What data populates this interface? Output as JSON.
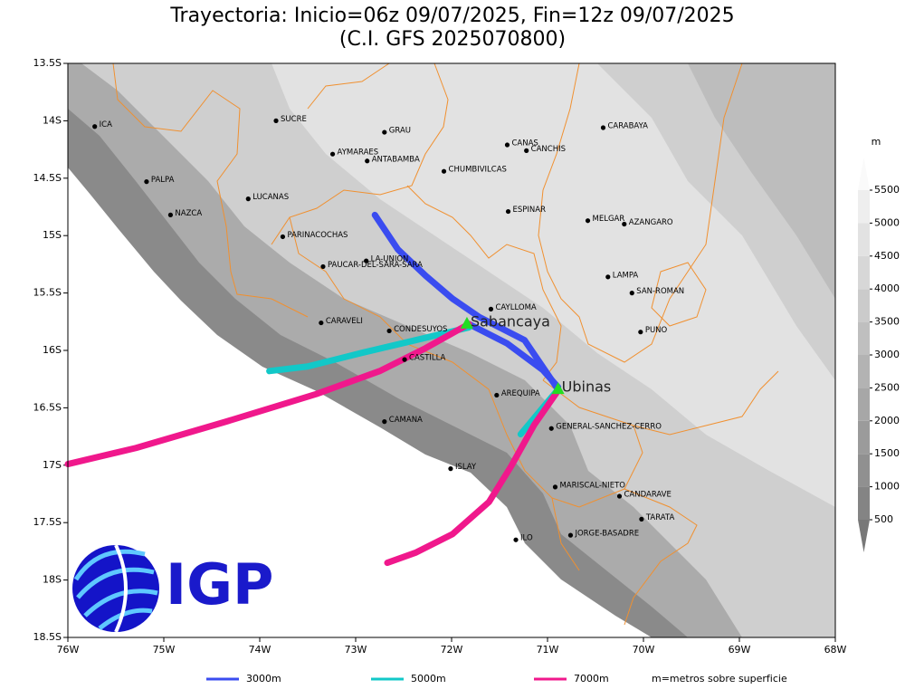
{
  "title": "Trayectoria: Inicio=06z 09/07/2025, Fin=12z 09/07/2025",
  "subtitle": "(C.I. GFS 2025070800)",
  "logo": "IGP",
  "map": {
    "xlim": [
      -76,
      -68
    ],
    "ylim": [
      -18.5,
      -13.5
    ],
    "xticks": [
      {
        "value": -76,
        "label": "76W"
      },
      {
        "value": -75,
        "label": "75W"
      },
      {
        "value": -74,
        "label": "74W"
      },
      {
        "value": -73,
        "label": "73W"
      },
      {
        "value": -72,
        "label": "72W"
      },
      {
        "value": -71,
        "label": "71W"
      },
      {
        "value": -70,
        "label": "70W"
      },
      {
        "value": -69,
        "label": "69W"
      },
      {
        "value": -68,
        "label": "68W"
      }
    ],
    "yticks": [
      {
        "value": -13.5,
        "label": "13.5S"
      },
      {
        "value": -14,
        "label": "14S"
      },
      {
        "value": -14.5,
        "label": "14.5S"
      },
      {
        "value": -15,
        "label": "15S"
      },
      {
        "value": -15.5,
        "label": "15.5S"
      },
      {
        "value": -16,
        "label": "16S"
      },
      {
        "value": -16.5,
        "label": "16.5S"
      },
      {
        "value": -17,
        "label": "17S"
      },
      {
        "value": -17.5,
        "label": "17.5S"
      },
      {
        "value": -18,
        "label": "18S"
      },
      {
        "value": -18.5,
        "label": "18.5S"
      }
    ],
    "places": [
      {
        "name": "ICA",
        "lon": -75.72,
        "lat": -14.05
      },
      {
        "name": "SUCRE",
        "lon": -73.83,
        "lat": -14.0
      },
      {
        "name": "GRAU",
        "lon": -72.7,
        "lat": -14.1
      },
      {
        "name": "AYMARAES",
        "lon": -73.24,
        "lat": -14.29
      },
      {
        "name": "ANTABAMBA",
        "lon": -72.88,
        "lat": -14.35
      },
      {
        "name": "CANAS",
        "lon": -71.42,
        "lat": -14.21
      },
      {
        "name": "CANCHIS",
        "lon": -71.22,
        "lat": -14.26
      },
      {
        "name": "CARABAYA",
        "lon": -70.42,
        "lat": -14.06
      },
      {
        "name": "CHUMBIVILCAS",
        "lon": -72.08,
        "lat": -14.44
      },
      {
        "name": "PALPA",
        "lon": -75.18,
        "lat": -14.53
      },
      {
        "name": "LUCANAS",
        "lon": -74.12,
        "lat": -14.68
      },
      {
        "name": "NAZCA",
        "lon": -74.93,
        "lat": -14.82
      },
      {
        "name": "ESPINAR",
        "lon": -71.41,
        "lat": -14.79
      },
      {
        "name": "MELGAR",
        "lon": -70.58,
        "lat": -14.87
      },
      {
        "name": "AZANGARO",
        "lon": -70.2,
        "lat": -14.9
      },
      {
        "name": "PARINACOCHAS",
        "lon": -73.76,
        "lat": -15.01
      },
      {
        "name": "LA-UNION",
        "lon": -72.89,
        "lat": -15.22
      },
      {
        "name": "PAUCAR-DEL-SARA-SARA",
        "lon": -73.34,
        "lat": -15.27
      },
      {
        "name": "LAMPA",
        "lon": -70.37,
        "lat": -15.36
      },
      {
        "name": "SAN-ROMAN",
        "lon": -70.12,
        "lat": -15.5
      },
      {
        "name": "CAYLLOMA",
        "lon": -71.59,
        "lat": -15.64
      },
      {
        "name": "CARAVELI",
        "lon": -73.36,
        "lat": -15.76
      },
      {
        "name": "CONDESUYOS",
        "lon": -72.65,
        "lat": -15.83
      },
      {
        "name": "PUNO",
        "lon": -70.03,
        "lat": -15.84
      },
      {
        "name": "CASTILLA",
        "lon": -72.49,
        "lat": -16.08
      },
      {
        "name": "AREQUIPA",
        "lon": -71.53,
        "lat": -16.39
      },
      {
        "name": "GENERAL-SANCHEZ-CERRO",
        "lon": -70.96,
        "lat": -16.68
      },
      {
        "name": "CAMANA",
        "lon": -72.7,
        "lat": -16.62
      },
      {
        "name": "ISLAY",
        "lon": -72.01,
        "lat": -17.03
      },
      {
        "name": "MARISCAL-NIETO",
        "lon": -70.92,
        "lat": -17.19
      },
      {
        "name": "CANDARAVE",
        "lon": -70.25,
        "lat": -17.27
      },
      {
        "name": "TARATA",
        "lon": -70.02,
        "lat": -17.47
      },
      {
        "name": "ILO",
        "lon": -71.33,
        "lat": -17.65
      },
      {
        "name": "JORGE-BASADRE",
        "lon": -70.76,
        "lat": -17.61
      }
    ],
    "volcanoes": [
      {
        "name": "Sabancaya",
        "lon": -71.84,
        "lat": -15.77
      },
      {
        "name": "Ubinas",
        "lon": -70.89,
        "lat": -16.34
      }
    ],
    "trajectories": [
      {
        "name": "3000m",
        "color": "#3a4cf0",
        "paths": [
          {
            "lon": [
              -71.82,
              -71.42,
              -71.05,
              -70.89
            ],
            "lat": [
              -15.77,
              -15.94,
              -16.17,
              -16.32
            ]
          },
          {
            "lon": [
              -70.89,
              -71.24,
              -71.71,
              -71.99,
              -72.27,
              -72.56,
              -72.8
            ],
            "lat": [
              -16.34,
              -15.91,
              -15.71,
              -15.55,
              -15.35,
              -15.12,
              -14.82
            ]
          }
        ]
      },
      {
        "name": "5000m",
        "color": "#12c8c8",
        "paths": [
          {
            "lon": [
              -71.82,
              -72.37,
              -72.93,
              -73.5,
              -73.9
            ],
            "lat": [
              -15.8,
              -15.91,
              -16.02,
              -16.14,
              -16.18
            ]
          },
          {
            "lon": [
              -70.89,
              -71.05,
              -71.28
            ],
            "lat": [
              -16.34,
              -16.5,
              -16.73
            ]
          }
        ]
      },
      {
        "name": "7000m",
        "color": "#f0188c",
        "paths": [
          {
            "lon": [
              -71.82,
              -72.27,
              -72.75,
              -73.41,
              -74.35,
              -75.29,
              -76.0
            ],
            "lat": [
              -15.77,
              -15.98,
              -16.18,
              -16.38,
              -16.62,
              -16.85,
              -16.99
            ]
          },
          {
            "lon": [
              -70.89,
              -71.14,
              -71.38,
              -71.61,
              -71.99,
              -72.37,
              -72.67
            ],
            "lat": [
              -16.35,
              -16.65,
              -17.01,
              -17.32,
              -17.6,
              -17.76,
              -17.85
            ]
          }
        ]
      }
    ],
    "colorbar": {
      "unit": "m",
      "ticks": [
        500,
        1000,
        1500,
        2000,
        2500,
        3000,
        3500,
        4000,
        4500,
        5000,
        5500
      ]
    },
    "note": "m=metros sobre superficie"
  }
}
